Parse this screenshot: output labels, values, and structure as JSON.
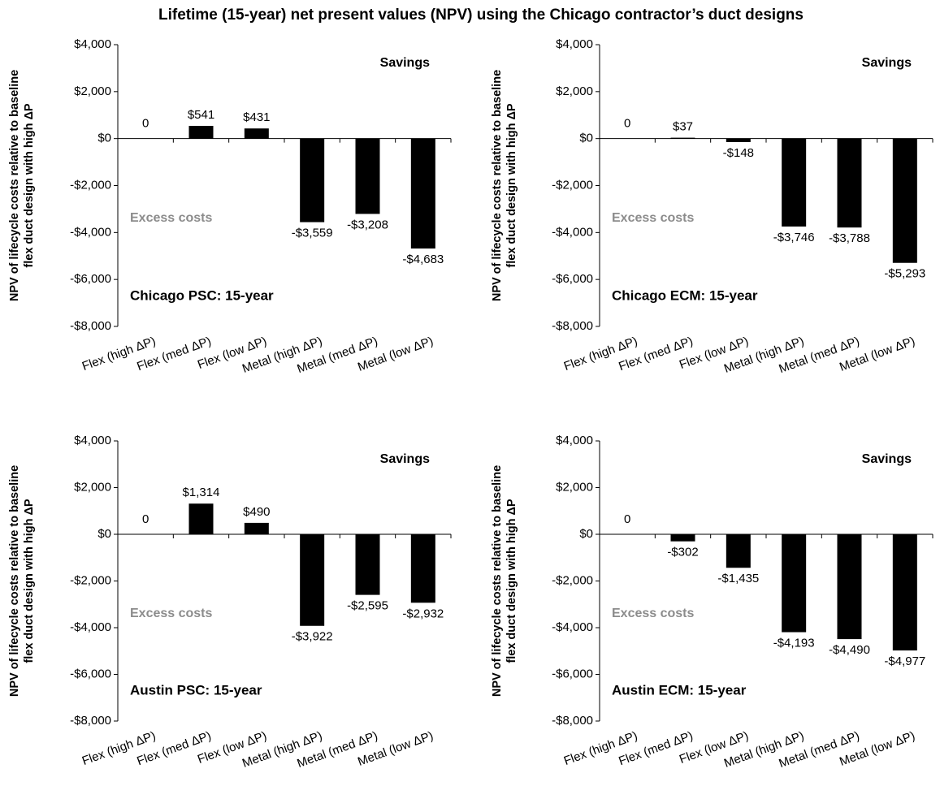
{
  "title": "Lifetime (15-year) net present values (NPV) using the Chicago contractor’s duct designs",
  "chart_data": [
    {
      "type": "bar",
      "label": "Chicago PSC: 15-year",
      "savings_label": "Savings",
      "excess_label": "Excess costs",
      "ylabel": [
        "NPV of lifecycle costs relative to baseline",
        "flex duct design with high ΔP"
      ],
      "categories": [
        "Flex (high ΔP)",
        "Flex (med ΔP)",
        "Flex (low ΔP)",
        "Metal (high ΔP)",
        "Metal (med ΔP)",
        "Metal (low ΔP)"
      ],
      "values": [
        0,
        541,
        431,
        -3559,
        -3208,
        -4683
      ],
      "value_labels": [
        "0",
        "$541",
        "$431",
        "-$3,559",
        "-$3,208",
        "-$4,683"
      ],
      "color": "#000000",
      "ylim": [
        -8000,
        4000
      ],
      "yticks": [
        {
          "value": 4000,
          "label": "$4,000"
        },
        {
          "value": 2000,
          "label": "$2,000"
        },
        {
          "value": 0,
          "label": "$0"
        },
        {
          "value": -2000,
          "label": "-$2,000"
        },
        {
          "value": -4000,
          "label": "-$4,000"
        },
        {
          "value": -6000,
          "label": "-$6,000"
        },
        {
          "value": -8000,
          "label": "-$8,000"
        }
      ]
    },
    {
      "type": "bar",
      "label": "Chicago ECM: 15-year",
      "savings_label": "Savings",
      "excess_label": "Excess costs",
      "ylabel": [
        "NPV of lifecycle costs relative to baseline",
        "flex duct design with high ΔP"
      ],
      "categories": [
        "Flex (high ΔP)",
        "Flex (med ΔP)",
        "Flex (low ΔP)",
        "Metal (high ΔP)",
        "Metal (med ΔP)",
        "Metal (low ΔP)"
      ],
      "values": [
        0,
        37,
        -148,
        -3746,
        -3788,
        -5293
      ],
      "value_labels": [
        "0",
        "$37",
        "-$148",
        "-$3,746",
        "-$3,788",
        "-$5,293"
      ],
      "color": "#000000",
      "ylim": [
        -8000,
        4000
      ],
      "yticks": [
        {
          "value": 4000,
          "label": "$4,000"
        },
        {
          "value": 2000,
          "label": "$2,000"
        },
        {
          "value": 0,
          "label": "$0"
        },
        {
          "value": -2000,
          "label": "-$2,000"
        },
        {
          "value": -4000,
          "label": "-$4,000"
        },
        {
          "value": -6000,
          "label": "-$6,000"
        },
        {
          "value": -8000,
          "label": "-$8,000"
        }
      ]
    },
    {
      "type": "bar",
      "label": "Austin PSC: 15-year",
      "savings_label": "Savings",
      "excess_label": "Excess costs",
      "ylabel": [
        "NPV of lifecycle costs relative to baseline",
        "flex duct design with high ΔP"
      ],
      "categories": [
        "Flex (high ΔP)",
        "Flex (med ΔP)",
        "Flex (low ΔP)",
        "Metal (high ΔP)",
        "Metal (med ΔP)",
        "Metal (low ΔP)"
      ],
      "values": [
        0,
        1314,
        490,
        -3922,
        -2595,
        -2932
      ],
      "value_labels": [
        "0",
        "$1,314",
        "$490",
        "-$3,922",
        "-$2,595",
        "-$2,932"
      ],
      "color": "#000000",
      "ylim": [
        -8000,
        4000
      ],
      "yticks": [
        {
          "value": 4000,
          "label": "$4,000"
        },
        {
          "value": 2000,
          "label": "$2,000"
        },
        {
          "value": 0,
          "label": "$0"
        },
        {
          "value": -2000,
          "label": "-$2,000"
        },
        {
          "value": -4000,
          "label": "-$4,000"
        },
        {
          "value": -6000,
          "label": "-$6,000"
        },
        {
          "value": -8000,
          "label": "-$8,000"
        }
      ]
    },
    {
      "type": "bar",
      "label": "Austin ECM: 15-year",
      "savings_label": "Savings",
      "excess_label": "Excess costs",
      "ylabel": [
        "NPV of lifecycle costs relative to baseline",
        "flex duct design with high ΔP"
      ],
      "categories": [
        "Flex (high ΔP)",
        "Flex (med ΔP)",
        "Flex (low ΔP)",
        "Metal (high ΔP)",
        "Metal (med ΔP)",
        "Metal (low ΔP)"
      ],
      "values": [
        0,
        -302,
        -1435,
        -4193,
        -4490,
        -4977
      ],
      "value_labels": [
        "0",
        "-$302",
        "-$1,435",
        "-$4,193",
        "-$4,490",
        "-$4,977"
      ],
      "color": "#000000",
      "ylim": [
        -8000,
        4000
      ],
      "yticks": [
        {
          "value": 4000,
          "label": "$4,000"
        },
        {
          "value": 2000,
          "label": "$2,000"
        },
        {
          "value": 0,
          "label": "$0"
        },
        {
          "value": -2000,
          "label": "-$2,000"
        },
        {
          "value": -4000,
          "label": "-$4,000"
        },
        {
          "value": -6000,
          "label": "-$6,000"
        },
        {
          "value": -8000,
          "label": "-$8,000"
        }
      ]
    }
  ]
}
